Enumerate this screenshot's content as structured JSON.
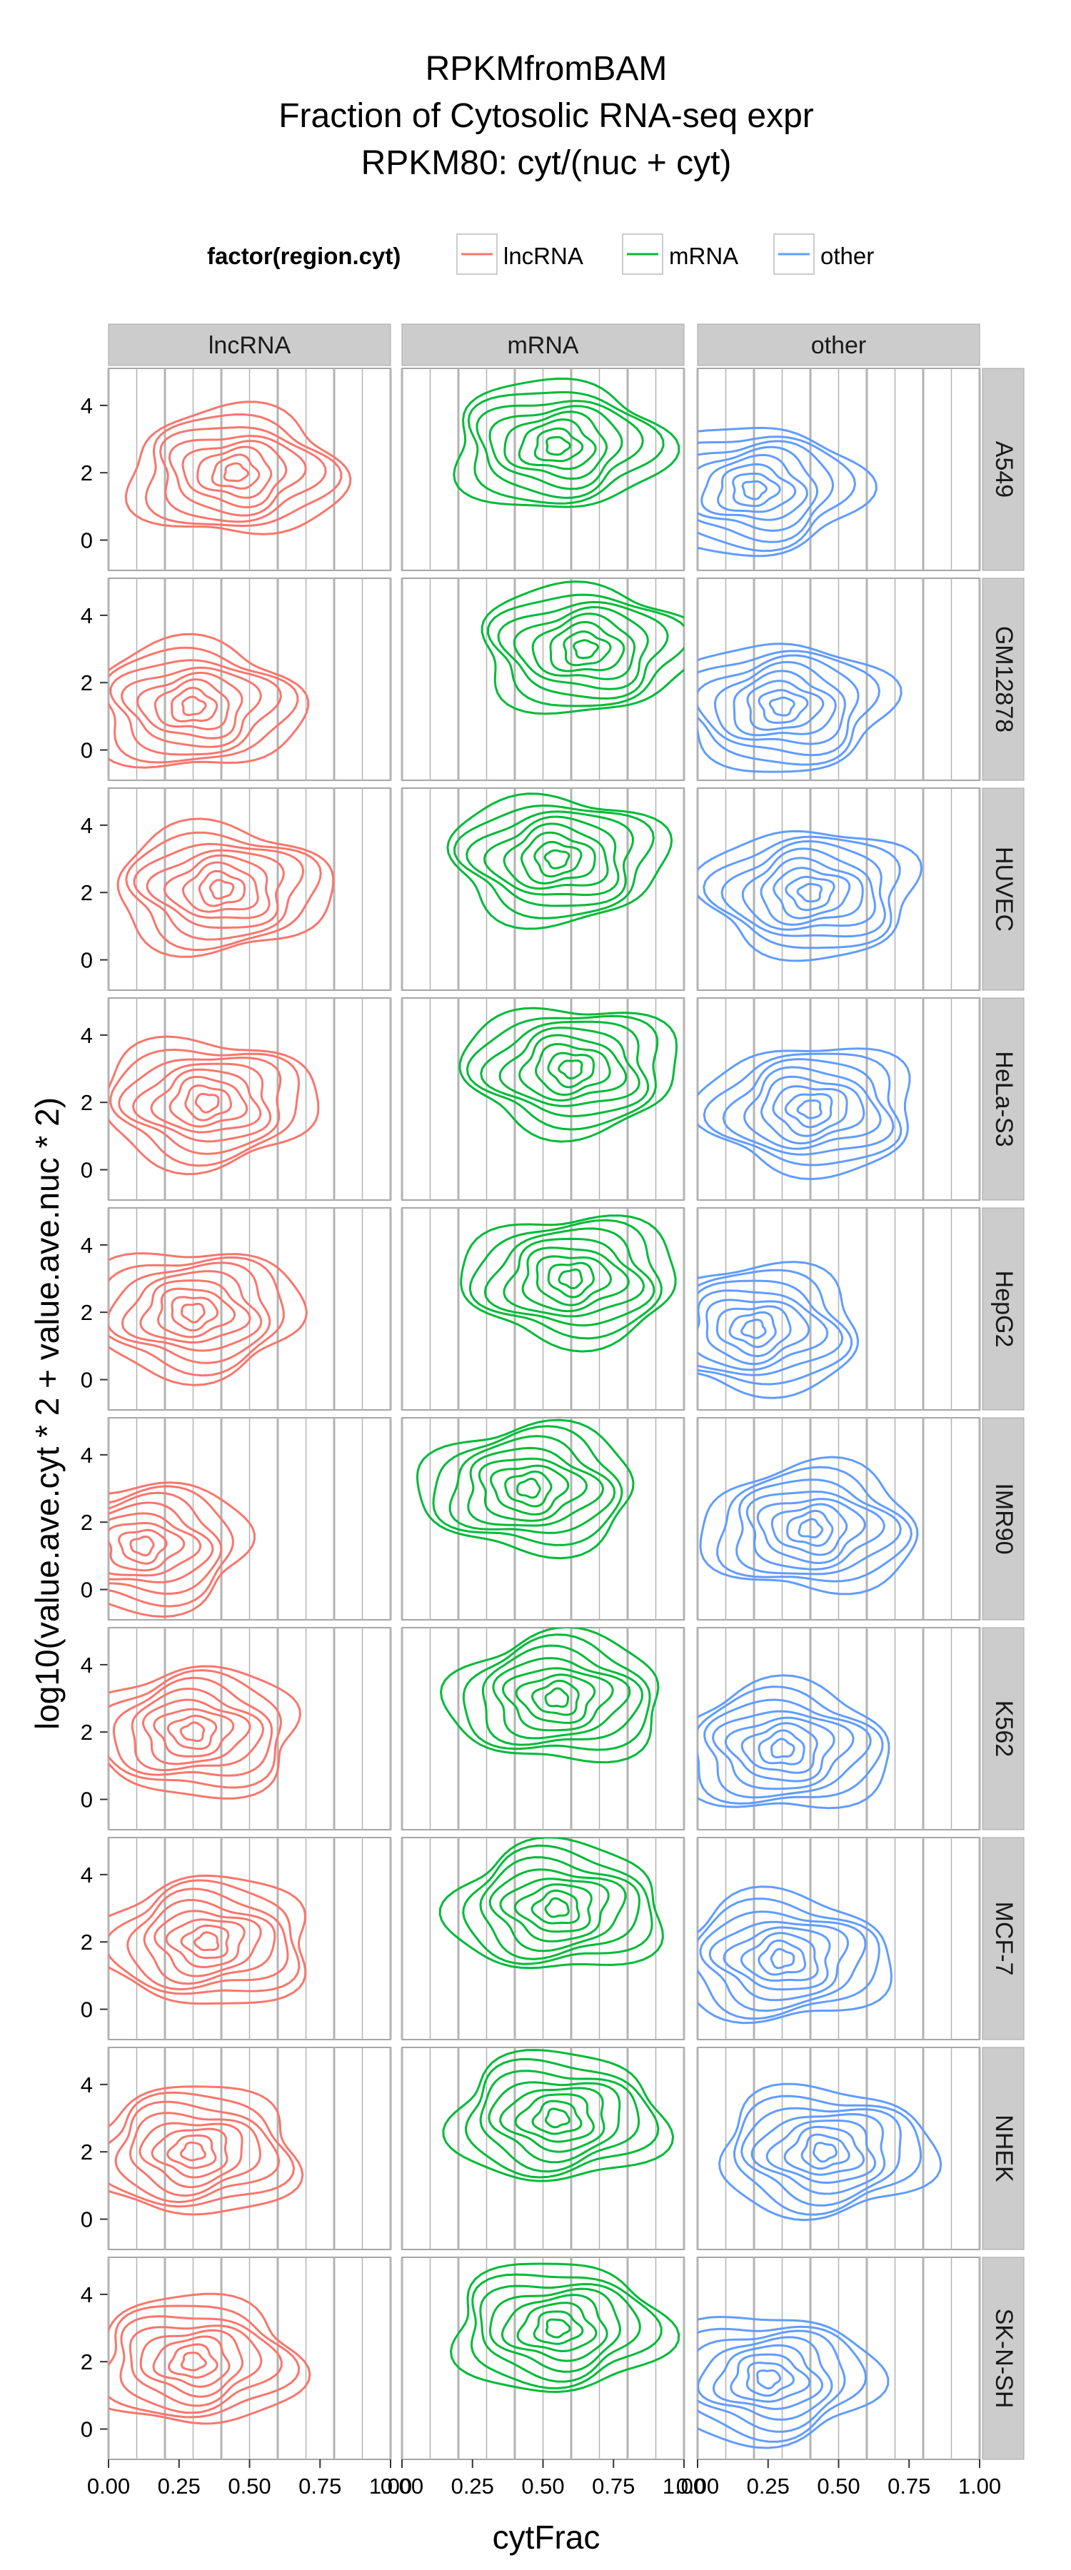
{
  "chart_data": {
    "type": "contour",
    "title": [
      "RPKMfromBAM",
      "Fraction of Cytosolic RNA-seq expr",
      "RPKM80: cyt/(nuc + cyt)"
    ],
    "xlabel": "cytFrac",
    "ylabel": "log10(value.ave.cyt * 2 + value.ave.nuc * 2)",
    "legend": {
      "title": "factor(region.cyt)",
      "position": "top",
      "entries": [
        {
          "label": "lncRNA",
          "color": "#F8766D"
        },
        {
          "label": "mRNA",
          "color": "#00BA38"
        },
        {
          "label": "other",
          "color": "#619CFF"
        }
      ]
    },
    "columns": [
      "lncRNA",
      "mRNA",
      "other"
    ],
    "rows": [
      "A549",
      "GM12878",
      "HUVEC",
      "HeLa-S3",
      "HepG2",
      "IMR90",
      "K562",
      "MCF-7",
      "NHEK",
      "SK-N-SH"
    ],
    "xlim": [
      0,
      1
    ],
    "ylim": [
      -0.9,
      5.1
    ],
    "x_ticks": [
      0,
      0.25,
      0.5,
      0.75,
      1
    ],
    "x_tick_labels": [
      "0.00",
      "0.25",
      "0.50",
      "0.75",
      "1.00"
    ],
    "y_ticks": [
      0,
      2,
      4
    ],
    "y_tick_labels": [
      "0",
      "2",
      "4"
    ],
    "grid": true,
    "density_peaks": {
      "lncRNA": {
        "A549": [
          0.45,
          2.0
        ],
        "GM12878": [
          0.3,
          1.3
        ],
        "HUVEC": [
          0.4,
          2.1
        ],
        "HeLa-S3": [
          0.35,
          2.0
        ],
        "HepG2": [
          0.3,
          2.0
        ],
        "IMR90": [
          0.12,
          1.3
        ],
        "K562": [
          0.3,
          2.0
        ],
        "MCF-7": [
          0.35,
          2.0
        ],
        "NHEK": [
          0.3,
          2.0
        ],
        "SK-N-SH": [
          0.3,
          2.0
        ]
      },
      "mRNA": {
        "A549": [
          0.55,
          2.8
        ],
        "GM12878": [
          0.65,
          3.0
        ],
        "HUVEC": [
          0.55,
          3.0
        ],
        "HeLa-S3": [
          0.6,
          3.0
        ],
        "HepG2": [
          0.6,
          3.0
        ],
        "IMR90": [
          0.45,
          3.0
        ],
        "K562": [
          0.55,
          3.0
        ],
        "MCF-7": [
          0.55,
          3.0
        ],
        "NHEK": [
          0.55,
          3.0
        ],
        "SK-N-SH": [
          0.55,
          3.0
        ]
      },
      "other": {
        "A549": [
          0.2,
          1.5
        ],
        "GM12878": [
          0.3,
          1.3
        ],
        "HUVEC": [
          0.4,
          2.0
        ],
        "HeLa-S3": [
          0.4,
          1.8
        ],
        "HepG2": [
          0.2,
          1.5
        ],
        "IMR90": [
          0.4,
          1.8
        ],
        "K562": [
          0.3,
          1.5
        ],
        "MCF-7": [
          0.3,
          1.5
        ],
        "NHEK": [
          0.45,
          2.0
        ],
        "SK-N-SH": [
          0.25,
          1.5
        ]
      }
    }
  }
}
